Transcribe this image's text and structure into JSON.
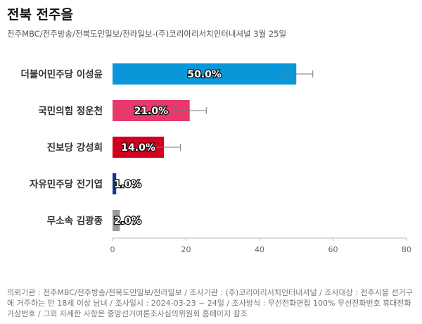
{
  "title": "전북 전주을",
  "subtitle": "전주MBC/전주방송/전북도민일보/전라일보-(주)코리아리서치인터내셔널 3월 25일",
  "footnote": "의뢰기관 : 전주MBC/전주방송/전북도민일보/전라일보 / 조사기관 : (주)코리아리서치인터내셔널 / 조사대상 : 전주시을 선거구에 거주하는 만 18세 이상 남녀 / 조사일시 : 2024-03-23 ~ 24일 / 조사방식 : 무선전화면접 100% 무선전화번호 휴대전화 가상번호 / 그외 자세한 사항은 중앙선거여론조사심의위원회 홈페이지 참조",
  "chart_data": {
    "type": "bar",
    "orientation": "horizontal",
    "categories": [
      "더불어민주당 이성윤",
      "국민의힘 정운천",
      "진보당 강성희",
      "자유민주당 전기엽",
      "무소속 김광종"
    ],
    "values": [
      50.0,
      21.0,
      14.0,
      1.0,
      2.0
    ],
    "value_labels": [
      "50.0%",
      "21.0%",
      "14.0%",
      "1.0%",
      "2.0%"
    ],
    "error_low": [
      45.5,
      16.5,
      9.5,
      0,
      0
    ],
    "error_high": [
      54.5,
      25.5,
      18.5,
      0,
      0
    ],
    "colors": [
      "#0a97d9",
      "#e6396c",
      "#d1001f",
      "#0b3c8c",
      "#9a9a9a"
    ],
    "xlim": [
      0,
      80
    ],
    "xticks": [
      0,
      20,
      40,
      60,
      80
    ],
    "xlabel": "",
    "ylabel": "",
    "grid": false
  }
}
